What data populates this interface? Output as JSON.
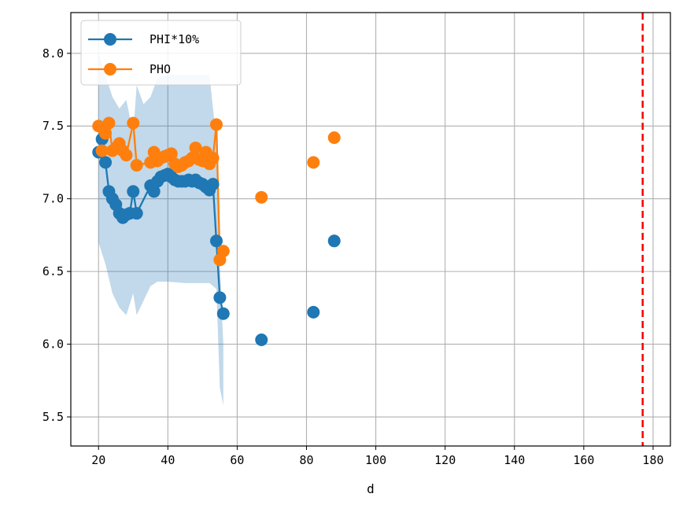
{
  "chart_data": {
    "type": "line",
    "title": "",
    "xlabel": "d",
    "ylabel": "",
    "xlim": [
      12,
      185
    ],
    "ylim": [
      5.3,
      8.28
    ],
    "xticks": [
      20,
      40,
      60,
      80,
      100,
      120,
      140,
      160,
      180
    ],
    "yticks": [
      5.5,
      6.0,
      6.5,
      7.0,
      7.5,
      8.0
    ],
    "ytick_labels": [
      "5.5",
      "6.0",
      "6.5",
      "7.0",
      "7.5",
      "8.0"
    ],
    "grid": true,
    "legend_position": "top-left",
    "vline": {
      "x": 177,
      "color": "#ff0000",
      "style": "dashed"
    },
    "series": [
      {
        "name": "PHI*10%",
        "color": "#1f77b4",
        "x": [
          20,
          21,
          22,
          23,
          24,
          25,
          26,
          27,
          28,
          29,
          30,
          31,
          35,
          36,
          37,
          38,
          39,
          40,
          41,
          42,
          43,
          44,
          45,
          46,
          47,
          48,
          49,
          50,
          51,
          52,
          53,
          54,
          55,
          56,
          67,
          82,
          88
        ],
        "y": [
          7.32,
          7.41,
          7.25,
          7.05,
          7.0,
          6.96,
          6.9,
          6.87,
          6.89,
          6.9,
          7.05,
          6.9,
          7.09,
          7.05,
          7.12,
          7.15,
          7.16,
          7.17,
          7.15,
          7.13,
          7.12,
          7.12,
          7.12,
          7.13,
          7.12,
          7.13,
          7.11,
          7.1,
          7.08,
          7.06,
          7.1,
          6.71,
          6.32,
          6.21,
          6.03,
          6.22,
          6.71
        ],
        "connected_until_index": 33,
        "band": {
          "color": "#1f77b4",
          "opacity": 0.28,
          "x": [
            20,
            22,
            24,
            26,
            28,
            30,
            31,
            33,
            35,
            37,
            40,
            45,
            50,
            52,
            54,
            55,
            56
          ],
          "upper": [
            8.0,
            7.85,
            7.7,
            7.62,
            7.68,
            7.45,
            7.78,
            7.65,
            7.7,
            7.83,
            7.85,
            7.85,
            7.85,
            7.85,
            7.4,
            6.55,
            6.0
          ],
          "lower": [
            6.7,
            6.55,
            6.35,
            6.25,
            6.2,
            6.35,
            6.2,
            6.3,
            6.4,
            6.43,
            6.43,
            6.42,
            6.42,
            6.42,
            6.38,
            5.7,
            5.58
          ]
        }
      },
      {
        "name": "PHO",
        "color": "#ff7f0e",
        "x": [
          20,
          21,
          22,
          23,
          24,
          25,
          26,
          27,
          28,
          30,
          31,
          35,
          36,
          37,
          38,
          39,
          40,
          41,
          42,
          43,
          44,
          45,
          46,
          47,
          48,
          49,
          50,
          51,
          52,
          53,
          54,
          55,
          56,
          67,
          82,
          88
        ],
        "y": [
          7.5,
          7.33,
          7.45,
          7.52,
          7.33,
          7.35,
          7.38,
          7.33,
          7.3,
          7.52,
          7.23,
          7.25,
          7.32,
          7.26,
          7.28,
          7.29,
          7.3,
          7.31,
          7.24,
          7.22,
          7.23,
          7.25,
          7.26,
          7.28,
          7.35,
          7.27,
          7.26,
          7.32,
          7.24,
          7.28,
          7.51,
          6.58,
          6.64,
          7.01,
          7.25,
          7.42
        ],
        "connected_until_index": 32
      }
    ]
  }
}
